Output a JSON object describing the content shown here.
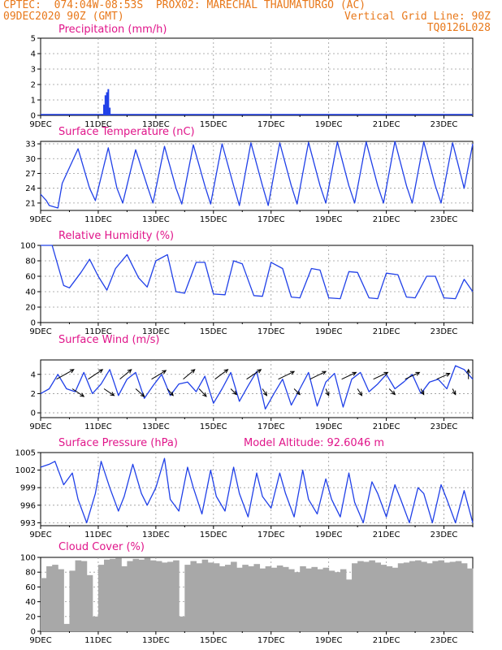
{
  "header": {
    "line1_left": "CPTEC:  074:04W-08:53S  PROX02: MARECHAL THAUMATURGO (AC)",
    "line2_left": "09DEC2020 90Z (GMT)",
    "line2_right": "Vertical Grid Line: 90Z",
    "line3_right": "TQ0126L028"
  },
  "x_ticks": [
    "9DEC",
    "11DEC",
    "13DEC",
    "15DEC",
    "17DEC",
    "19DEC",
    "21DEC",
    "23DEC"
  ],
  "colors": {
    "header": "#e8781a",
    "title": "#e0158a",
    "line": "#2040e8",
    "bar": "#a8a8a8",
    "precip": "#2040e8"
  },
  "chart_data": [
    {
      "type": "bar",
      "title": "Precipitation (mm/h)",
      "ylim": [
        0,
        5
      ],
      "yticks": [
        "0",
        "1",
        "2",
        "3",
        "4",
        "5"
      ],
      "xlim": [
        0,
        15
      ],
      "series": [
        {
          "x": [
            2.2,
            2.25,
            2.3,
            2.35,
            2.4
          ],
          "values": [
            0.7,
            1.3,
            1.5,
            1.7,
            0.5
          ]
        }
      ]
    },
    {
      "type": "line",
      "title": "Surface Temperature (nC)",
      "ylim": [
        19.5,
        33.5
      ],
      "yticks": [
        "21",
        "24",
        "27",
        "30",
        "33"
      ],
      "xlim": [
        0,
        15
      ],
      "x": [
        0,
        0.2,
        0.3,
        0.6,
        0.75,
        1.3,
        1.7,
        1.9,
        2.35,
        2.65,
        2.85,
        3.3,
        3.7,
        3.9,
        4.3,
        4.7,
        4.9,
        5.3,
        5.7,
        5.9,
        6.3,
        6.7,
        6.9,
        7.3,
        7.7,
        7.9,
        8.3,
        8.7,
        8.9,
        9.3,
        9.7,
        9.9,
        10.3,
        10.7,
        10.9,
        11.3,
        11.7,
        11.9,
        12.3,
        12.7,
        12.9,
        13.3,
        13.7,
        13.9,
        14.3,
        14.7,
        15
      ],
      "values": [
        22.8,
        21.5,
        20.5,
        20.0,
        25.0,
        32.0,
        24.0,
        21.5,
        32.2,
        24.0,
        21.0,
        31.8,
        24.5,
        21.0,
        32.5,
        24.0,
        20.8,
        32.8,
        24.5,
        20.8,
        33.0,
        24.5,
        20.5,
        33.2,
        24.5,
        20.5,
        33.2,
        24.5,
        20.8,
        33.3,
        24.5,
        21.0,
        33.4,
        24.5,
        21.0,
        33.4,
        24.5,
        21.0,
        33.5,
        24.5,
        21.0,
        33.4,
        24.5,
        21.0,
        33.2,
        24.0,
        33.0
      ]
    },
    {
      "type": "line",
      "title": "Relative Humidity (%)",
      "ylim": [
        0,
        100
      ],
      "yticks": [
        "0",
        "20",
        "40",
        "60",
        "80",
        "100"
      ],
      "xlim": [
        0,
        15
      ],
      "x": [
        0,
        0.4,
        0.8,
        1.0,
        1.4,
        1.7,
        2.0,
        2.3,
        2.6,
        3.0,
        3.4,
        3.7,
        4.0,
        4.4,
        4.7,
        5.0,
        5.4,
        5.7,
        6.0,
        6.4,
        6.7,
        7.0,
        7.4,
        7.7,
        8.0,
        8.4,
        8.7,
        9.0,
        9.4,
        9.7,
        10.0,
        10.4,
        10.7,
        11.0,
        11.4,
        11.7,
        12.0,
        12.4,
        12.7,
        13.0,
        13.4,
        13.7,
        14.0,
        14.4,
        14.7,
        15.0
      ],
      "values": [
        100,
        100,
        48,
        45,
        65,
        82,
        60,
        42,
        70,
        88,
        58,
        46,
        80,
        88,
        40,
        38,
        78,
        78,
        37,
        36,
        80,
        76,
        35,
        34,
        78,
        70,
        33,
        32,
        70,
        68,
        32,
        31,
        66,
        65,
        32,
        31,
        64,
        62,
        33,
        32,
        60,
        60,
        32,
        31,
        56,
        40
      ]
    },
    {
      "type": "line",
      "title": "Surface Wind (m/s)",
      "ylim": [
        -0.5,
        5.5
      ],
      "yticks": [
        "0",
        "2",
        "4"
      ],
      "xlim": [
        0,
        15
      ],
      "x": [
        0,
        0.3,
        0.6,
        0.9,
        1.2,
        1.5,
        1.8,
        2.1,
        2.4,
        2.7,
        3.0,
        3.3,
        3.6,
        3.9,
        4.2,
        4.5,
        4.8,
        5.1,
        5.4,
        5.7,
        6.0,
        6.3,
        6.6,
        6.9,
        7.2,
        7.5,
        7.8,
        8.1,
        8.4,
        8.7,
        9.0,
        9.3,
        9.6,
        9.9,
        10.2,
        10.5,
        10.8,
        11.1,
        11.4,
        11.7,
        12.0,
        12.3,
        12.6,
        12.9,
        13.2,
        13.5,
        13.8,
        14.1,
        14.4,
        14.7,
        15.0
      ],
      "values": [
        2.0,
        2.5,
        4.0,
        2.5,
        2.2,
        4.2,
        2.0,
        3.0,
        4.5,
        1.8,
        3.5,
        4.2,
        1.5,
        2.8,
        4.0,
        1.8,
        3.0,
        3.2,
        2.2,
        3.8,
        1.0,
        2.5,
        4.2,
        1.2,
        2.8,
        4.3,
        0.4,
        2.0,
        3.5,
        0.8,
        2.5,
        4.2,
        0.7,
        3.2,
        4.1,
        0.6,
        3.5,
        4.2,
        2.2,
        3.0,
        4.0,
        2.5,
        3.2,
        4.0,
        2.0,
        3.2,
        3.5,
        2.5,
        4.9,
        4.5,
        3.5
      ],
      "arrows": {
        "x": [
          0.55,
          1.1,
          1.65,
          2.2,
          2.75,
          3.3,
          3.85,
          4.4,
          4.95,
          5.5,
          6.05,
          6.6,
          7.15,
          7.7,
          8.25,
          8.8,
          9.35,
          9.9,
          10.45,
          11.0,
          11.55,
          12.1,
          12.65,
          13.2,
          13.75,
          14.3,
          14.85
        ],
        "y": [
          3.5,
          2.5,
          3.5,
          2.5,
          3.5,
          2.5,
          3.5,
          2.5,
          3.5,
          2.5,
          3.5,
          2.5,
          3.5,
          2.5,
          3.5,
          2.5,
          3.5,
          2.5,
          3.5,
          2.5,
          3.5,
          2.5,
          3.5,
          2.5,
          3.5,
          2.5,
          3.5
        ],
        "dx": [
          0.6,
          0.4,
          0.5,
          0.35,
          0.4,
          0.3,
          0.5,
          0.2,
          0.4,
          0.25,
          0.45,
          0.2,
          0.5,
          0.15,
          0.55,
          0.2,
          0.55,
          0.1,
          0.5,
          0.15,
          0.5,
          0.2,
          0.5,
          0.1,
          0.45,
          0.1,
          0.0
        ],
        "dy": [
          1.0,
          -0.8,
          1.0,
          -0.7,
          1.0,
          -0.8,
          0.9,
          -0.7,
          1.0,
          -0.8,
          1.0,
          -0.6,
          1.0,
          -0.7,
          0.8,
          -0.6,
          0.8,
          -0.7,
          0.7,
          -0.7,
          0.7,
          -0.6,
          0.7,
          -0.6,
          0.6,
          -0.6,
          1.0
        ]
      }
    },
    {
      "type": "line",
      "title": "Surface Pressure (hPa)",
      "annotation": "Model Altitude: 92.6046 m",
      "ylim": [
        992.5,
        1005
      ],
      "yticks": [
        "993",
        "996",
        "999",
        "1002",
        "1005"
      ],
      "xlim": [
        0,
        15
      ],
      "x": [
        0,
        0.3,
        0.5,
        0.8,
        1.1,
        1.3,
        1.6,
        1.9,
        2.1,
        2.4,
        2.7,
        2.9,
        3.2,
        3.5,
        3.7,
        4.0,
        4.3,
        4.5,
        4.8,
        5.1,
        5.3,
        5.6,
        5.9,
        6.1,
        6.4,
        6.7,
        6.9,
        7.2,
        7.5,
        7.7,
        8.0,
        8.3,
        8.5,
        8.8,
        9.1,
        9.3,
        9.6,
        9.9,
        10.1,
        10.4,
        10.7,
        10.9,
        11.2,
        11.5,
        11.7,
        12.0,
        12.3,
        12.5,
        12.8,
        13.1,
        13.3,
        13.6,
        13.9,
        14.1,
        14.4,
        14.7,
        15.0
      ],
      "values": [
        1002.5,
        1003.0,
        1003.5,
        999.5,
        1001.5,
        997.0,
        993.0,
        998.0,
        1003.5,
        999.0,
        995.0,
        997.5,
        1003.0,
        998.0,
        996.0,
        999.0,
        1004.0,
        997.0,
        995.0,
        1002.5,
        999.0,
        994.5,
        1002.0,
        997.5,
        995.0,
        1002.5,
        998.0,
        994.0,
        1001.5,
        997.5,
        995.5,
        1001.5,
        998.0,
        994.0,
        1002.0,
        997.0,
        994.5,
        1000.5,
        997.0,
        994.0,
        1001.5,
        996.5,
        993.0,
        1000.0,
        998.0,
        994.0,
        999.5,
        997.0,
        993.0,
        999.0,
        998.0,
        993.0,
        999.5,
        997.0,
        993.0,
        998.5,
        993.0
      ]
    },
    {
      "type": "bar",
      "title": "Cloud Cover (%)",
      "ylim": [
        0,
        100
      ],
      "yticks": [
        "0",
        "20",
        "40",
        "60",
        "80",
        "100"
      ],
      "xlim": [
        0,
        15
      ],
      "x": [
        0,
        0.2,
        0.4,
        0.6,
        0.8,
        1.0,
        1.2,
        1.4,
        1.6,
        1.8,
        2.0,
        2.2,
        2.4,
        2.6,
        2.8,
        3.0,
        3.2,
        3.4,
        3.6,
        3.8,
        4.0,
        4.2,
        4.4,
        4.6,
        4.8,
        5.0,
        5.2,
        5.4,
        5.6,
        5.8,
        6.0,
        6.2,
        6.4,
        6.6,
        6.8,
        7.0,
        7.2,
        7.4,
        7.6,
        7.8,
        8.0,
        8.2,
        8.4,
        8.6,
        8.8,
        9.0,
        9.2,
        9.4,
        9.6,
        9.8,
        10.0,
        10.2,
        10.4,
        10.6,
        10.8,
        11.0,
        11.2,
        11.4,
        11.6,
        11.8,
        12.0,
        12.2,
        12.4,
        12.6,
        12.8,
        13.0,
        13.2,
        13.4,
        13.6,
        13.8,
        14.0,
        14.2,
        14.4,
        14.6,
        14.8
      ],
      "values": [
        72,
        88,
        90,
        84,
        10,
        82,
        96,
        95,
        76,
        20,
        90,
        97,
        98,
        99,
        88,
        95,
        98,
        97,
        99,
        96,
        95,
        93,
        94,
        96,
        20,
        90,
        95,
        92,
        97,
        93,
        92,
        88,
        90,
        94,
        86,
        90,
        88,
        91,
        85,
        88,
        86,
        89,
        87,
        84,
        80,
        88,
        85,
        87,
        84,
        86,
        82,
        80,
        84,
        70,
        92,
        95,
        94,
        96,
        93,
        90,
        88,
        86,
        92,
        93,
        95,
        96,
        94,
        92,
        95,
        96,
        93,
        94,
        95,
        92,
        85
      ]
    }
  ]
}
